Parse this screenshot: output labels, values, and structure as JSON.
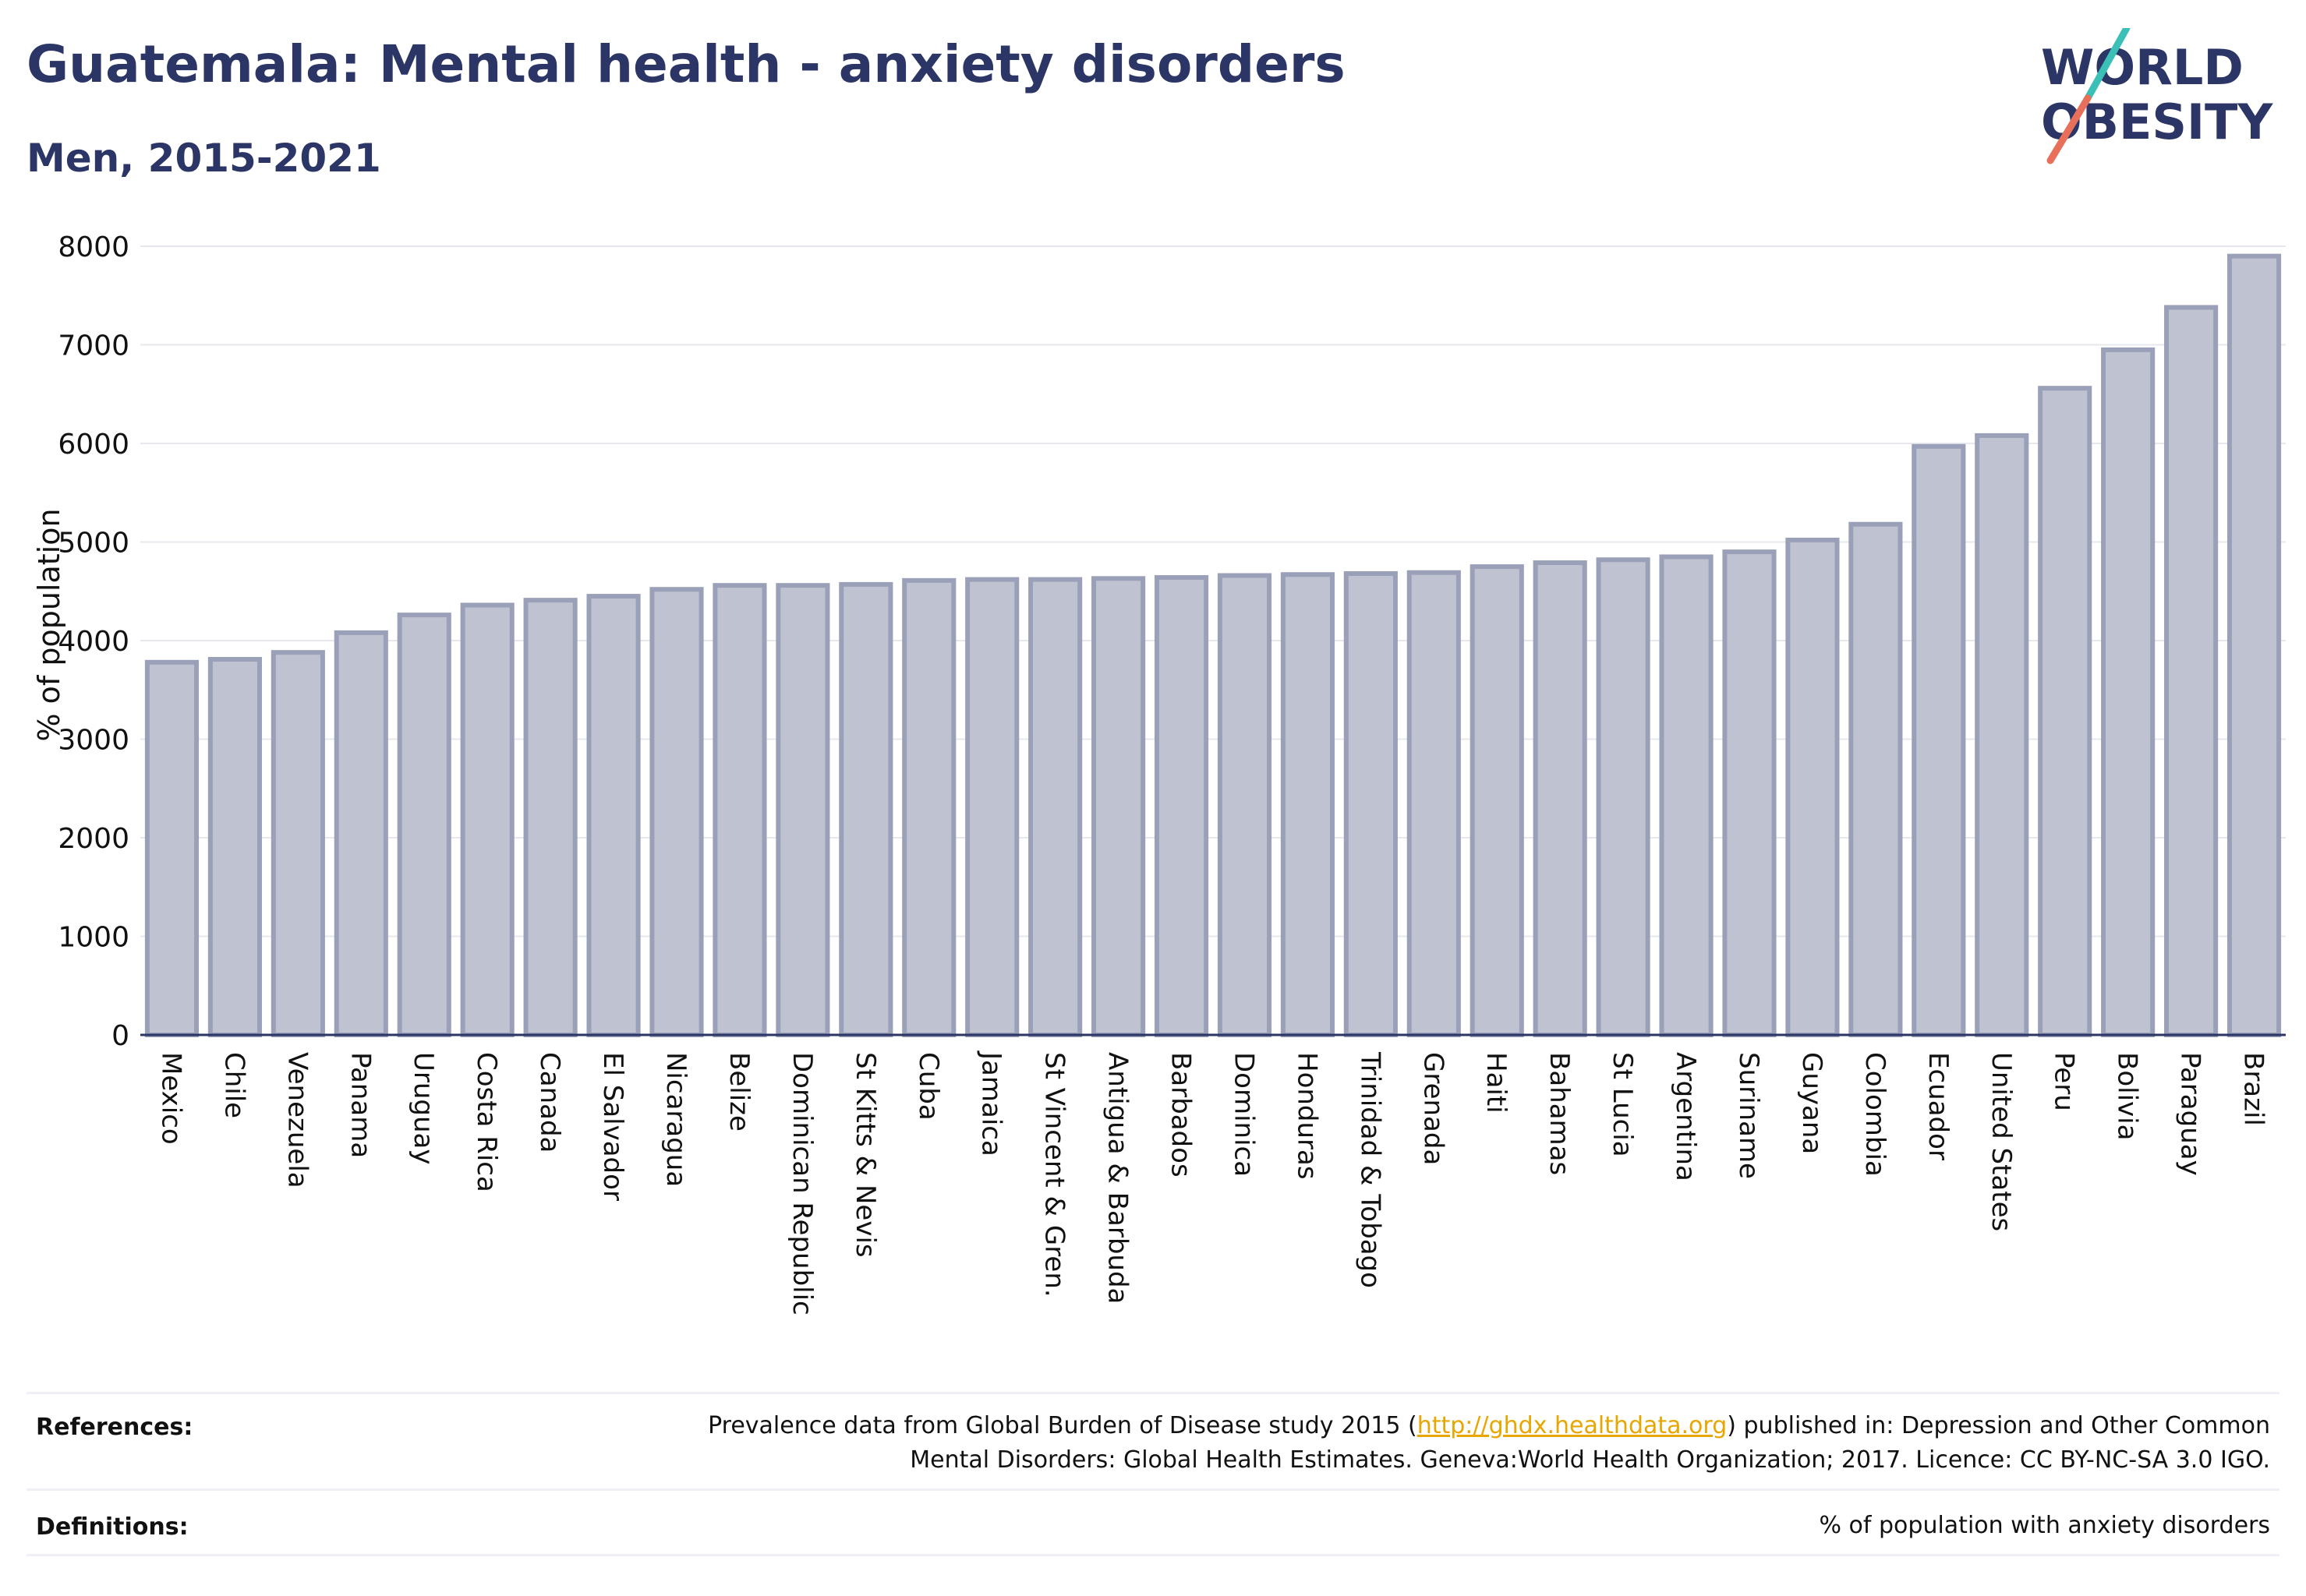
{
  "header": {
    "title": "Guatemala: Mental health - anxiety disorders",
    "subtitle": "Men, 2015-2021"
  },
  "logo": {
    "line1": "WORLD",
    "line2": "OBESITY",
    "accent_teal": "#3bbfb6",
    "accent_coral": "#e8705a",
    "color": "#2b3566"
  },
  "chart_data": {
    "type": "bar",
    "ylabel": "% of population",
    "ylim": [
      0,
      8000
    ],
    "yticks": [
      0,
      1000,
      2000,
      3000,
      4000,
      5000,
      6000,
      7000,
      8000
    ],
    "grid": true,
    "bar_color": "#bfc3d1",
    "bar_edge_color": "#9aa0b8",
    "categories": [
      "Mexico",
      "Chile",
      "Venezuela",
      "Panama",
      "Uruguay",
      "Costa Rica",
      "Canada",
      "El Salvador",
      "Nicaragua",
      "Belize",
      "Dominican Republic",
      "St Kitts & Nevis",
      "Cuba",
      "Jamaica",
      "St Vincent & Gren.",
      "Antigua & Barbuda",
      "Barbados",
      "Dominica",
      "Honduras",
      "Trinidad & Tobago",
      "Grenada",
      "Haiti",
      "Bahamas",
      "St Lucia",
      "Argentina",
      "Suriname",
      "Guyana",
      "Colombia",
      "Ecuador",
      "United States",
      "Peru",
      "Bolivia",
      "Paraguay",
      "Brazil"
    ],
    "values": [
      3780,
      3810,
      3880,
      4080,
      4260,
      4360,
      4410,
      4450,
      4520,
      4560,
      4560,
      4570,
      4610,
      4620,
      4620,
      4630,
      4640,
      4660,
      4670,
      4680,
      4690,
      4750,
      4790,
      4820,
      4850,
      4900,
      5020,
      5180,
      5970,
      6080,
      6560,
      6950,
      7380,
      7900
    ]
  },
  "footer": {
    "references_label": "References:",
    "references_line1_pre": "Prevalence data from Global Burden of Disease study 2015 (",
    "references_link": "http://ghdx.healthdata.org",
    "references_line1_post": ") published in: Depression and Other Common",
    "references_line2": "Mental Disorders: Global Health Estimates. Geneva:World Health Organization; 2017. Licence: CC BY-NC-SA 3.0 IGO.",
    "definitions_label": "Definitions:",
    "definitions_text": "% of population with anxiety disorders"
  }
}
